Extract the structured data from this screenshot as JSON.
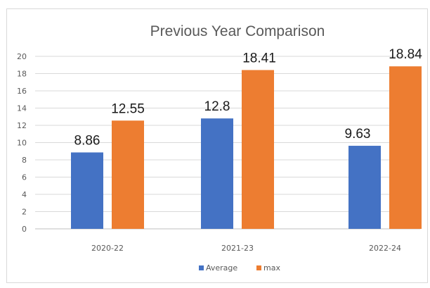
{
  "chart_data": {
    "type": "bar",
    "title": "Previous Year Comparison",
    "categories": [
      "2020-22",
      "2021-23",
      "2022-24"
    ],
    "series": [
      {
        "name": "Average",
        "values": [
          8.86,
          12.8,
          9.63
        ],
        "color": "#4472c4"
      },
      {
        "name": "max",
        "values": [
          12.55,
          18.41,
          18.84
        ],
        "color": "#ed7d31"
      }
    ],
    "data_labels": [
      [
        "8.86",
        "12.8",
        "9.63"
      ],
      [
        "12.55",
        "18.41",
        "18.84"
      ]
    ],
    "yticks": [
      "0",
      "2",
      "4",
      "6",
      "8",
      "10",
      "12",
      "14",
      "16",
      "18",
      "20"
    ],
    "ylim": [
      0,
      20
    ],
    "grid": true,
    "legend_position": "bottom"
  }
}
